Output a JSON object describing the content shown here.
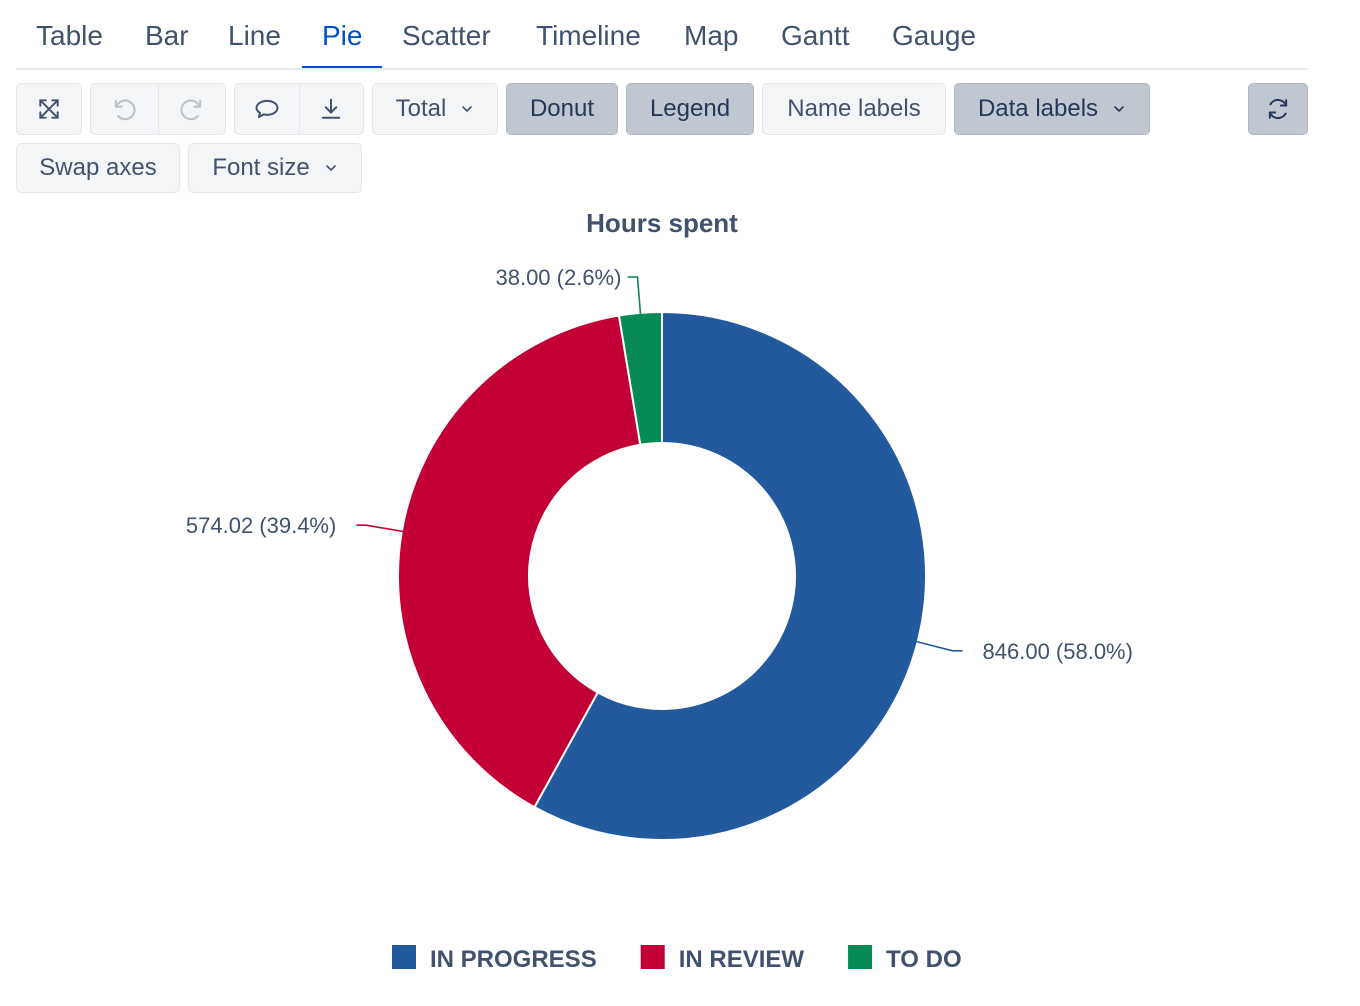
{
  "tabs": [
    {
      "label": "Table"
    },
    {
      "label": "Bar"
    },
    {
      "label": "Line"
    },
    {
      "label": "Pie",
      "active": true
    },
    {
      "label": "Scatter"
    },
    {
      "label": "Timeline"
    },
    {
      "label": "Map"
    },
    {
      "label": "Gantt"
    },
    {
      "label": "Gauge"
    }
  ],
  "toolbar": {
    "fullscreen_icon": "expand-icon",
    "undo_icon": "undo-icon",
    "redo_icon": "redo-icon",
    "comment_icon": "comment-icon",
    "download_icon": "download-icon",
    "total_label": "Total",
    "donut_label": "Donut",
    "legend_label": "Legend",
    "name_labels_label": "Name labels",
    "data_labels_label": "Data labels",
    "refresh_icon": "refresh-icon",
    "swap_axes_label": "Swap axes",
    "font_size_label": "Font size",
    "pressed": [
      "Donut",
      "Legend",
      "Data labels"
    ]
  },
  "chart_data": {
    "type": "pie",
    "donut": true,
    "title": "Hours spent",
    "slices": [
      {
        "name": "IN PROGRESS",
        "value": 846.0,
        "label": "846.00 (58.0%)",
        "color": "#235a9d"
      },
      {
        "name": "IN REVIEW",
        "value": 574.02,
        "label": "574.02 (39.4%)",
        "color": "#c20036"
      },
      {
        "name": "TO DO",
        "value": 38.0,
        "label": "38.00 (2.6%)",
        "color": "#078a55"
      }
    ],
    "legend_placement": "bottom"
  }
}
